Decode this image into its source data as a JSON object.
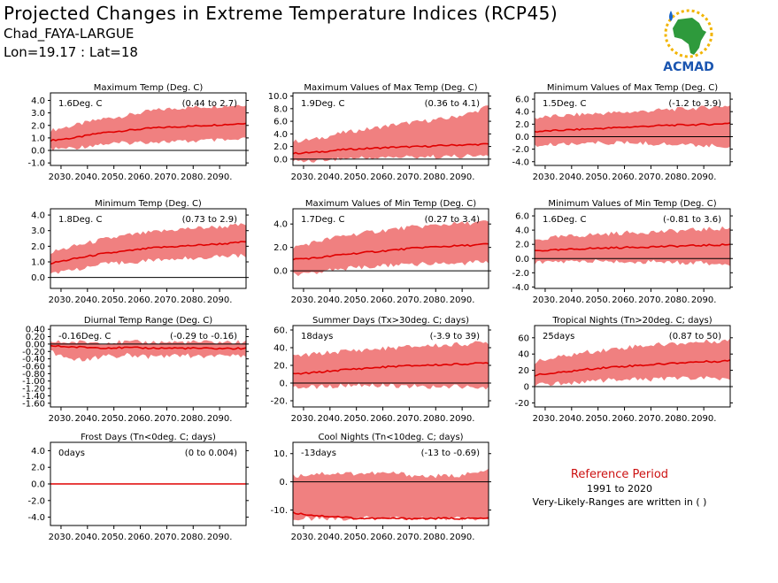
{
  "header": {
    "title": "Projected Changes in Extreme Temperature Indices (RCP45)",
    "station": "Chad_FAYA-LARGUE",
    "coords": "Lon=19.17 : Lat=18"
  },
  "logo": {
    "text": "ACMAD",
    "icon": "africa-map-sun-raindrop-logo"
  },
  "legend": {
    "title": "Reference Period",
    "period": "1991 to 2020",
    "note": "Very-Likely-Ranges are written in ( )"
  },
  "colors": {
    "band": "#f08080",
    "line": "#e00000",
    "zero": "#000000"
  },
  "chart_data": [
    {
      "type": "area",
      "title": "Maximum Temp (Deg. C)",
      "summary": "1.6Deg. C",
      "range": "(0.44 to 2.7)",
      "x_ticks": [
        "2030.",
        "2040.",
        "2050.",
        "2060.",
        "2070.",
        "2080.",
        "2090."
      ],
      "y_ticks": [
        "-1.0",
        "0.0",
        "1.0",
        "2.0",
        "3.0",
        "4.0"
      ],
      "ylim": [
        -1.2,
        4.6
      ],
      "x_range": [
        2026,
        2100
      ],
      "x": [
        2026,
        2035,
        2045,
        2055,
        2065,
        2075,
        2085,
        2095,
        2100
      ],
      "median": [
        0.8,
        1.0,
        1.4,
        1.6,
        1.8,
        1.9,
        2.0,
        2.1,
        2.2
      ],
      "low": [
        0.1,
        0.2,
        0.5,
        0.6,
        0.7,
        0.7,
        0.8,
        0.8,
        0.9
      ],
      "high": [
        1.6,
        2.0,
        2.5,
        2.8,
        3.2,
        3.4,
        3.5,
        3.6,
        3.7
      ]
    },
    {
      "type": "area",
      "title": "Maximum Values of Max Temp (Deg. C)",
      "summary": "1.9Deg. C",
      "range": "(0.36 to 4.1)",
      "x_ticks": [
        "2030.",
        "2040.",
        "2050.",
        "2060.",
        "2070.",
        "2080.",
        "2090."
      ],
      "y_ticks": [
        "0.0",
        "2.0",
        "4.0",
        "6.0",
        "8.0",
        "10.0"
      ],
      "ylim": [
        -1.0,
        10.5
      ],
      "x_range": [
        2026,
        2100
      ],
      "x": [
        2026,
        2035,
        2045,
        2055,
        2065,
        2075,
        2085,
        2095,
        2100
      ],
      "median": [
        0.9,
        1.1,
        1.5,
        1.7,
        1.9,
        2.0,
        2.2,
        2.3,
        2.4
      ],
      "low": [
        -0.3,
        -0.2,
        0.1,
        0.2,
        0.3,
        0.4,
        0.4,
        0.5,
        0.5
      ],
      "high": [
        2.8,
        3.2,
        4.2,
        4.8,
        5.5,
        6.0,
        6.5,
        7.5,
        8.5
      ]
    },
    {
      "type": "area",
      "title": "Minimum Values of Max Temp (Deg. C)",
      "summary": "1.5Deg. C",
      "range": "(-1.2 to 3.9)",
      "x_ticks": [
        "2030.",
        "2040.",
        "2050.",
        "2060.",
        "2070.",
        "2080.",
        "2090."
      ],
      "y_ticks": [
        "-4.0",
        "-2.0",
        "0.0",
        "2.0",
        "4.0",
        "6.0"
      ],
      "ylim": [
        -4.6,
        7.0
      ],
      "x_range": [
        2026,
        2100
      ],
      "x": [
        2026,
        2035,
        2045,
        2055,
        2065,
        2075,
        2085,
        2095,
        2100
      ],
      "median": [
        0.8,
        1.0,
        1.2,
        1.4,
        1.6,
        1.8,
        1.9,
        2.0,
        2.2
      ],
      "low": [
        -1.5,
        -1.2,
        -1.0,
        -1.0,
        -1.0,
        -1.2,
        -1.3,
        -1.5,
        -1.6
      ],
      "high": [
        3.0,
        3.3,
        3.6,
        3.8,
        4.0,
        4.3,
        4.5,
        4.8,
        5.0
      ]
    },
    {
      "type": "area",
      "title": "Minimum Temp (Deg. C)",
      "summary": "1.8Deg. C",
      "range": "(0.73 to 2.9)",
      "x_ticks": [
        "2030.",
        "2040.",
        "2050.",
        "2060.",
        "2070.",
        "2080.",
        "2090."
      ],
      "y_ticks": [
        "0.0",
        "1.0",
        "2.0",
        "3.0",
        "4.0"
      ],
      "ylim": [
        -0.7,
        4.4
      ],
      "x_range": [
        2026,
        2100
      ],
      "x": [
        2026,
        2035,
        2045,
        2055,
        2065,
        2075,
        2085,
        2095,
        2100
      ],
      "median": [
        0.9,
        1.2,
        1.5,
        1.7,
        1.9,
        2.0,
        2.1,
        2.2,
        2.3
      ],
      "low": [
        0.3,
        0.5,
        0.8,
        1.0,
        1.1,
        1.2,
        1.3,
        1.4,
        1.4
      ],
      "high": [
        1.6,
        2.0,
        2.4,
        2.7,
        2.9,
        3.1,
        3.2,
        3.3,
        3.4
      ]
    },
    {
      "type": "area",
      "title": "Maximum Values of Min Temp (Deg. C)",
      "summary": "1.7Deg. C",
      "range": "(0.27 to 3.4)",
      "x_ticks": [
        "2030.",
        "2040.",
        "2050.",
        "2060.",
        "2070.",
        "2080.",
        "2090."
      ],
      "y_ticks": [
        "0.0",
        "2.0",
        "4.0"
      ],
      "ylim": [
        -1.5,
        5.3
      ],
      "x_range": [
        2026,
        2100
      ],
      "x": [
        2026,
        2035,
        2045,
        2055,
        2065,
        2075,
        2085,
        2095,
        2100
      ],
      "median": [
        1.0,
        1.1,
        1.4,
        1.6,
        1.8,
        2.0,
        2.1,
        2.2,
        2.3
      ],
      "low": [
        -0.3,
        -0.1,
        0.2,
        0.3,
        0.5,
        0.6,
        0.6,
        0.7,
        0.8
      ],
      "high": [
        2.0,
        2.5,
        3.0,
        3.3,
        3.6,
        3.8,
        4.0,
        4.1,
        4.2
      ]
    },
    {
      "type": "area",
      "title": "Minimum Values of Min Temp (Deg. C)",
      "summary": "1.6Deg. C",
      "range": "(-0.81 to 3.6)",
      "x_ticks": [
        "2030.",
        "2040.",
        "2050.",
        "2060.",
        "2070.",
        "2080.",
        "2090."
      ],
      "y_ticks": [
        "-4.0",
        "-2.0",
        "0.0",
        "2.0",
        "4.0",
        "6.0"
      ],
      "ylim": [
        -4.2,
        7.0
      ],
      "x_range": [
        2026,
        2100
      ],
      "x": [
        2026,
        2035,
        2045,
        2055,
        2065,
        2075,
        2085,
        2095,
        2100
      ],
      "median": [
        1.1,
        1.2,
        1.4,
        1.5,
        1.6,
        1.7,
        1.8,
        1.9,
        2.0
      ],
      "low": [
        -0.6,
        -0.5,
        -0.4,
        -0.4,
        -0.5,
        -0.5,
        -0.6,
        -0.7,
        -0.8
      ],
      "high": [
        2.6,
        3.0,
        3.3,
        3.5,
        3.7,
        3.8,
        4.0,
        4.2,
        4.3
      ]
    },
    {
      "type": "area",
      "title": "Diurnal Temp Range (Deg. C)",
      "summary": "-0.16Deg. C",
      "range": "(-0.29 to -0.16)",
      "x_ticks": [
        "2030.",
        "2040.",
        "2050.",
        "2060.",
        "2070.",
        "2080.",
        "2090."
      ],
      "y_ticks": [
        "-1.60",
        "-1.40",
        "-1.20",
        "-1.00",
        "-0.80",
        "-0.60",
        "-0.40",
        "-0.20",
        "0.00",
        "0.20",
        "0.40"
      ],
      "ylim": [
        -1.7,
        0.5
      ],
      "x_range": [
        2026,
        2100
      ],
      "x": [
        2026,
        2035,
        2045,
        2055,
        2065,
        2075,
        2085,
        2095,
        2100
      ],
      "median": [
        -0.05,
        -0.08,
        -0.1,
        -0.1,
        -0.11,
        -0.11,
        -0.12,
        -0.12,
        -0.12
      ],
      "low": [
        -0.2,
        -0.45,
        -0.35,
        -0.3,
        -0.35,
        -0.3,
        -0.35,
        -0.3,
        -0.3
      ],
      "high": [
        0.05,
        0.05,
        0.05,
        0.05,
        0.05,
        0.05,
        0.05,
        0.05,
        0.05
      ]
    },
    {
      "type": "area",
      "title": "Summer Days (Tx>30deg. C; days)",
      "summary": "18days",
      "range": "(-3.9 to 39)",
      "x_ticks": [
        "2030.",
        "2040.",
        "2050.",
        "2060.",
        "2070.",
        "2080.",
        "2090."
      ],
      "y_ticks": [
        "-20.",
        "0.",
        "20.",
        "40.",
        "60."
      ],
      "ylim": [
        -27,
        65
      ],
      "x_range": [
        2026,
        2100
      ],
      "x": [
        2026,
        2035,
        2045,
        2055,
        2065,
        2075,
        2085,
        2095,
        2100
      ],
      "median": [
        10,
        12,
        15,
        17,
        19,
        20,
        21,
        22,
        23
      ],
      "low": [
        -5,
        -4,
        -3,
        -3,
        -3,
        -4,
        -4,
        -4,
        -5
      ],
      "high": [
        30,
        33,
        36,
        38,
        40,
        42,
        43,
        45,
        46
      ]
    },
    {
      "type": "area",
      "title": "Tropical Nights (Tn>20deg. C; days)",
      "summary": "25days",
      "range": "(0.87 to 50)",
      "x_ticks": [
        "2030.",
        "2040.",
        "2050.",
        "2060.",
        "2070.",
        "2080.",
        "2090."
      ],
      "y_ticks": [
        "-20",
        "0",
        "20",
        "40",
        "60"
      ],
      "ylim": [
        -25,
        75
      ],
      "x_range": [
        2026,
        2100
      ],
      "x": [
        2026,
        2035,
        2045,
        2055,
        2065,
        2075,
        2085,
        2095,
        2100
      ],
      "median": [
        14,
        17,
        21,
        24,
        26,
        28,
        30,
        31,
        32
      ],
      "low": [
        2,
        4,
        6,
        8,
        9,
        9,
        10,
        10,
        10
      ],
      "high": [
        30,
        36,
        42,
        46,
        50,
        52,
        54,
        56,
        57
      ]
    },
    {
      "type": "area",
      "title": "Frost Days (Tn<0deg. C; days)",
      "summary": "0days",
      "range": "(0 to 0.004)",
      "x_ticks": [
        "2030.",
        "2040.",
        "2050.",
        "2060.",
        "2070.",
        "2080.",
        "2090."
      ],
      "y_ticks": [
        "-4.0",
        "-2.0",
        "0.0",
        "2.0",
        "4.0"
      ],
      "ylim": [
        -5,
        5
      ],
      "x_range": [
        2026,
        2100
      ],
      "x": [
        2026,
        2100
      ],
      "median": [
        0,
        0
      ],
      "low": [
        0,
        0
      ],
      "high": [
        0,
        0
      ]
    },
    {
      "type": "area",
      "title": "Cool Nights (Tn<10deg. C; days)",
      "summary": "-13days",
      "range": "(-13 to -0.69)",
      "x_ticks": [
        "2030.",
        "2040.",
        "2050.",
        "2060.",
        "2070.",
        "2080.",
        "2090."
      ],
      "y_ticks": [
        "-10.",
        "0.",
        "10."
      ],
      "ylim": [
        -15.5,
        14
      ],
      "x_range": [
        2026,
        2100
      ],
      "x": [
        2026,
        2035,
        2045,
        2050,
        2055,
        2065,
        2075,
        2085,
        2095,
        2100
      ],
      "median": [
        -11,
        -12,
        -12.5,
        -13,
        -13,
        -13,
        -13,
        -13,
        -13,
        -13
      ],
      "low": [
        -13,
        -13,
        -13,
        -13,
        -13,
        -13,
        -13,
        -13,
        -13,
        -13
      ],
      "high": [
        2,
        3,
        3,
        3,
        3,
        3,
        2,
        2,
        3,
        4
      ]
    }
  ]
}
